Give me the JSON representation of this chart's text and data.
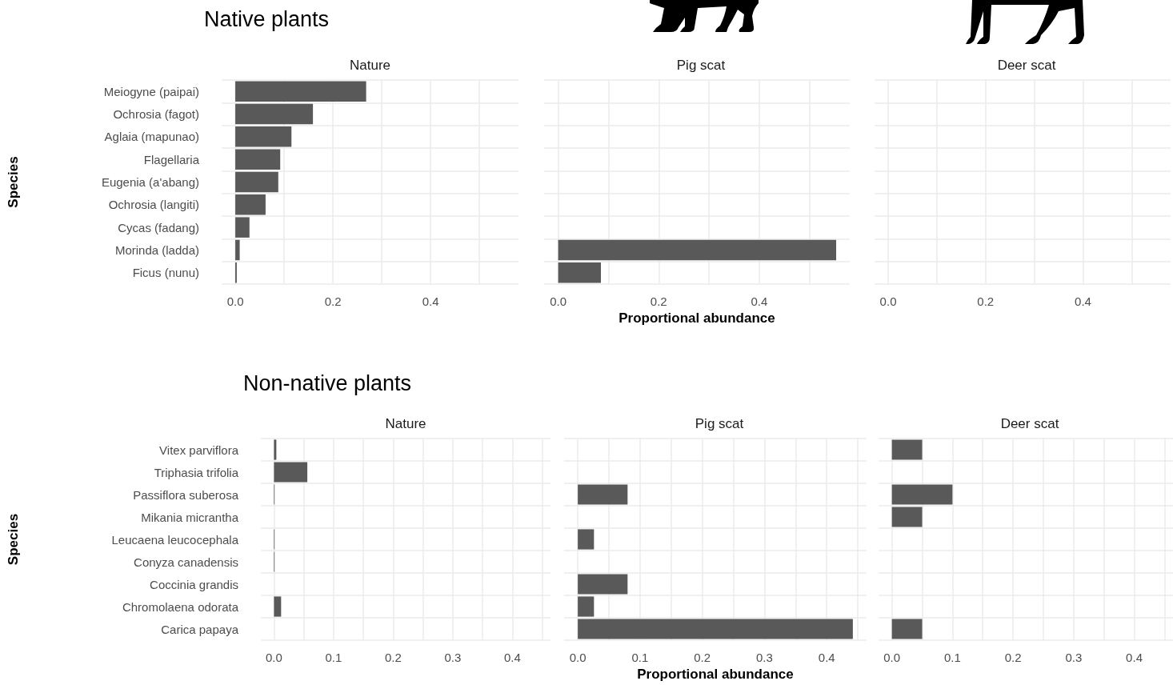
{
  "chart_data": [
    {
      "type": "bar",
      "orientation": "horizontal",
      "title": "Native plants",
      "subtitle": "Nature",
      "ylabel": "Species",
      "categories": [
        "Meiogyne (paipai)",
        "Ochrosia (fagot)",
        "Aglaia (mapunao)",
        "Flagellaria",
        "Eugenia (a'abang)",
        "Ochrosia (langiti)",
        "Cycas (fadang)",
        "Morinda (ladda)",
        "Ficus (nunu)"
      ],
      "values": [
        0.268,
        0.159,
        0.115,
        0.092,
        0.088,
        0.062,
        0.029,
        0.009,
        0.003
      ],
      "color": "#595959",
      "xlim": [
        -0.028,
        0.58
      ],
      "xticks": [
        {
          "value": 0,
          "label": "0.0"
        },
        {
          "value": 0.1,
          "label": null
        },
        {
          "value": 0.2,
          "label": "0.2"
        },
        {
          "value": 0.3,
          "label": null
        },
        {
          "value": 0.4,
          "label": "0.4"
        },
        {
          "value": 0.5,
          "label": null
        }
      ],
      "grid": true
    },
    {
      "type": "bar",
      "orientation": "horizontal",
      "subtitle": "Pig scat",
      "xlabel": "Proportional abundance",
      "values": [
        null,
        null,
        null,
        null,
        null,
        null,
        null,
        0.553,
        0.085
      ],
      "color": "#595959",
      "xlim": [
        -0.028,
        0.58
      ],
      "xticks": [
        {
          "value": 0,
          "label": "0.0"
        },
        {
          "value": 0.1,
          "label": null
        },
        {
          "value": 0.2,
          "label": "0.2"
        },
        {
          "value": 0.3,
          "label": null
        },
        {
          "value": 0.4,
          "label": "0.4"
        },
        {
          "value": 0.5,
          "label": null
        }
      ],
      "grid": true,
      "tick_labels": "x"
    },
    {
      "type": "bar",
      "orientation": "horizontal",
      "subtitle": "Deer scat",
      "values": [
        null,
        null,
        null,
        null,
        null,
        null,
        null,
        null,
        null
      ],
      "color": "#595959",
      "xlim": [
        -0.028,
        0.58
      ],
      "xticks": [
        {
          "value": 0,
          "label": "0.0"
        },
        {
          "value": 0.1,
          "label": null
        },
        {
          "value": 0.2,
          "label": "0.2"
        },
        {
          "value": 0.3,
          "label": null
        },
        {
          "value": 0.4,
          "label": "0.4"
        },
        {
          "value": 0.5,
          "label": null
        }
      ],
      "grid": true,
      "tick_labels": "x"
    },
    {
      "type": "bar",
      "orientation": "horizontal",
      "title": "Non-native plants",
      "subtitle": "Nature",
      "ylabel": "Species",
      "categories": [
        "Vitex parviflora",
        "Triphasia trifolia",
        "Passiflora suberosa",
        "Mikania micrantha",
        "Leucaena leucocephala",
        "Conyza canadensis",
        "Coccinia grandis",
        "Chromolaena odorata",
        "Carica papaya"
      ],
      "values": [
        0.004,
        0.056,
        0.001,
        null,
        0.001,
        0.001,
        null,
        0.012,
        null
      ],
      "color": "#595959",
      "xlim": [
        -0.022,
        0.464
      ],
      "xticks": [
        {
          "value": 0,
          "label": "0.0"
        },
        {
          "value": 0.05,
          "label": null
        },
        {
          "value": 0.1,
          "label": "0.1"
        },
        {
          "value": 0.15,
          "label": null
        },
        {
          "value": 0.2,
          "label": "0.2"
        },
        {
          "value": 0.25,
          "label": null
        },
        {
          "value": 0.3,
          "label": "0.3"
        },
        {
          "value": 0.35,
          "label": null
        },
        {
          "value": 0.4,
          "label": "0.4"
        },
        {
          "value": 0.45,
          "label": null
        }
      ],
      "grid": true
    },
    {
      "type": "bar",
      "orientation": "horizontal",
      "subtitle": "Pig scat",
      "xlabel": "Proportional abundance",
      "values": [
        null,
        null,
        0.08,
        null,
        0.026,
        null,
        0.08,
        0.026,
        0.442
      ],
      "color": "#595959",
      "xlim": [
        -0.022,
        0.464
      ],
      "xticks": [
        {
          "value": 0,
          "label": "0.0"
        },
        {
          "value": 0.05,
          "label": null
        },
        {
          "value": 0.1,
          "label": "0.1"
        },
        {
          "value": 0.15,
          "label": null
        },
        {
          "value": 0.2,
          "label": "0.2"
        },
        {
          "value": 0.25,
          "label": null
        },
        {
          "value": 0.3,
          "label": "0.3"
        },
        {
          "value": 0.35,
          "label": null
        },
        {
          "value": 0.4,
          "label": "0.4"
        },
        {
          "value": 0.45,
          "label": null
        }
      ],
      "grid": true,
      "tick_labels": "x"
    },
    {
      "type": "bar",
      "orientation": "horizontal",
      "subtitle": "Deer scat",
      "values": [
        0.05,
        null,
        0.1,
        0.05,
        null,
        null,
        null,
        null,
        0.05
      ],
      "color": "#595959",
      "xlim": [
        -0.022,
        0.464
      ],
      "xticks": [
        {
          "value": 0,
          "label": "0.0"
        },
        {
          "value": 0.05,
          "label": null
        },
        {
          "value": 0.1,
          "label": "0.1"
        },
        {
          "value": 0.15,
          "label": null
        },
        {
          "value": 0.2,
          "label": "0.2"
        },
        {
          "value": 0.25,
          "label": null
        },
        {
          "value": 0.3,
          "label": "0.3"
        },
        {
          "value": 0.35,
          "label": null
        },
        {
          "value": 0.4,
          "label": "0.4"
        },
        {
          "value": 0.45,
          "label": null
        }
      ],
      "grid": true,
      "tick_labels": "x"
    }
  ]
}
